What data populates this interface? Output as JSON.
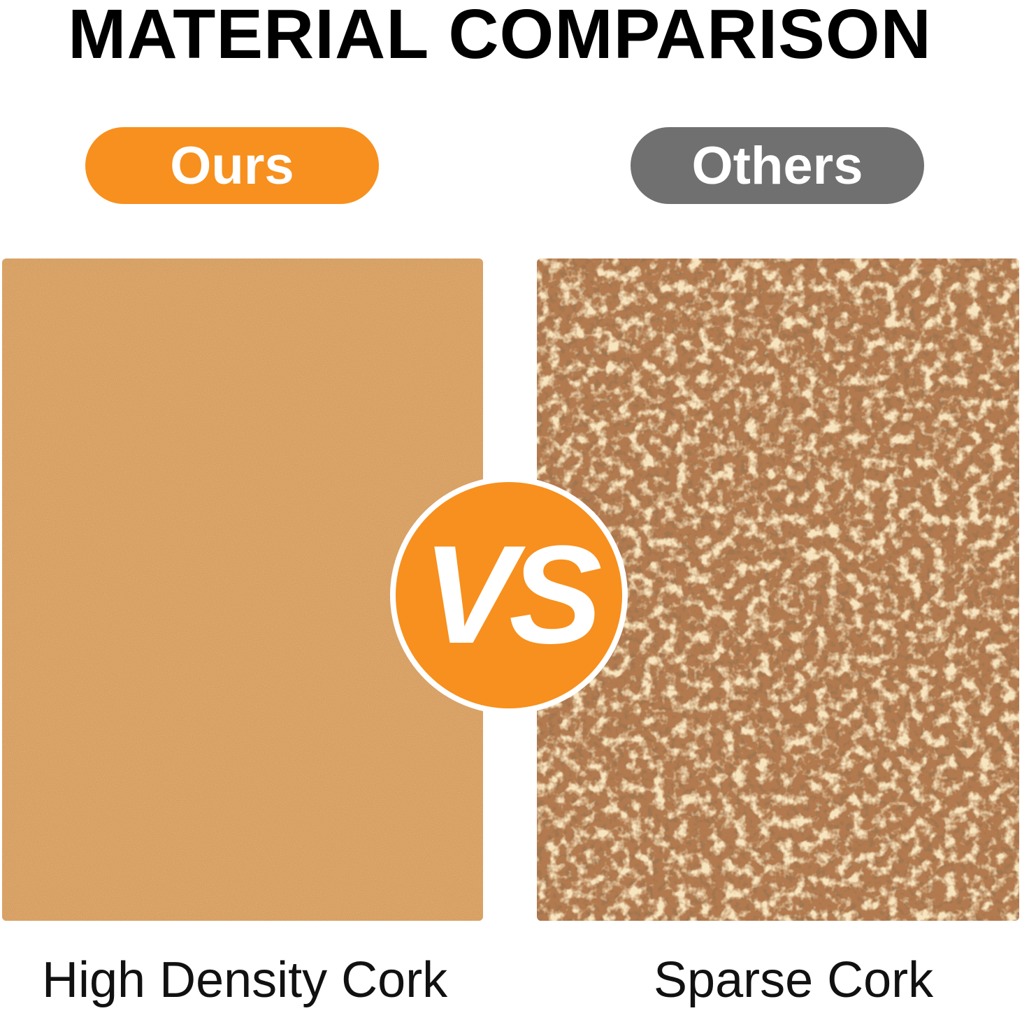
{
  "title": "MATERIAL COMPARISON",
  "ours": {
    "badge": "Ours",
    "caption": "High Density Cork",
    "badge_color": "#F7901E"
  },
  "others": {
    "badge": "Others",
    "caption": "Sparse Cork",
    "badge_color": "#707070"
  },
  "vs": {
    "label": "VS",
    "color": "#F7901E"
  }
}
